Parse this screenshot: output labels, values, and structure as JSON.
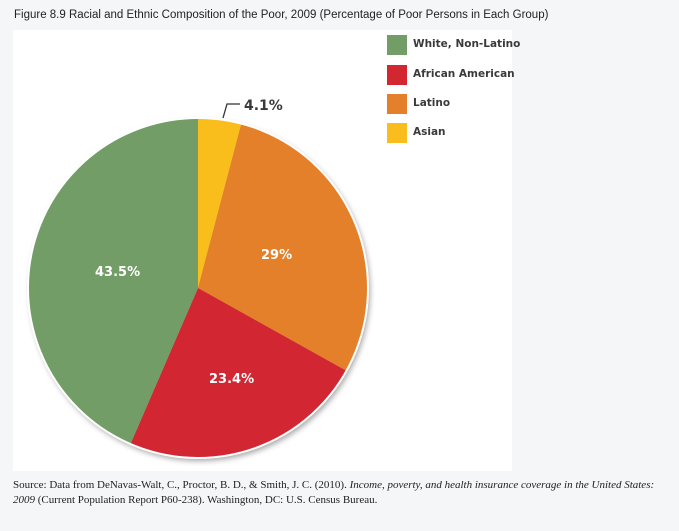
{
  "title": "Figure 8.9 Racial and Ethnic Composition of the Poor, 2009 (Percentage of Poor Persons in Each Group)",
  "legend": [
    {
      "label": "White, Non-Latino",
      "color": "#739d66"
    },
    {
      "label": "African American",
      "color": "#d22630"
    },
    {
      "label": "Latino",
      "color": "#e4802c"
    },
    {
      "label": "Asian",
      "color": "#f9be1e"
    }
  ],
  "slice_labels": {
    "white": "43.5%",
    "african_american": "23.4%",
    "latino": "29%",
    "asian": "4.1%"
  },
  "source": {
    "prefix": "Source: Data from DeNavas-Walt, C., Proctor, B. D., & Smith, J. C. (2010). ",
    "italic": "Income, poverty, and health insurance coverage in the United States: 2009",
    "suffix": " (Current Population Report P60-238). Washington, DC: U.S. Census Bureau."
  },
  "chart_data": {
    "type": "pie",
    "title": "Figure 8.9 Racial and Ethnic Composition of the Poor, 2009 (Percentage of Poor Persons in Each Group)",
    "categories": [
      "White, Non-Latino",
      "African American",
      "Latino",
      "Asian"
    ],
    "values": [
      43.5,
      23.4,
      29,
      4.1
    ],
    "colors": [
      "#739d66",
      "#d22630",
      "#e4802c",
      "#f9be1e"
    ],
    "labels": [
      "43.5%",
      "23.4%",
      "29%",
      "4.1%"
    ],
    "legend_position": "right-top",
    "start_angle_deg": 0,
    "direction": "clockwise, starting at top with Asian then Latino, African American, White Non-Latino"
  }
}
